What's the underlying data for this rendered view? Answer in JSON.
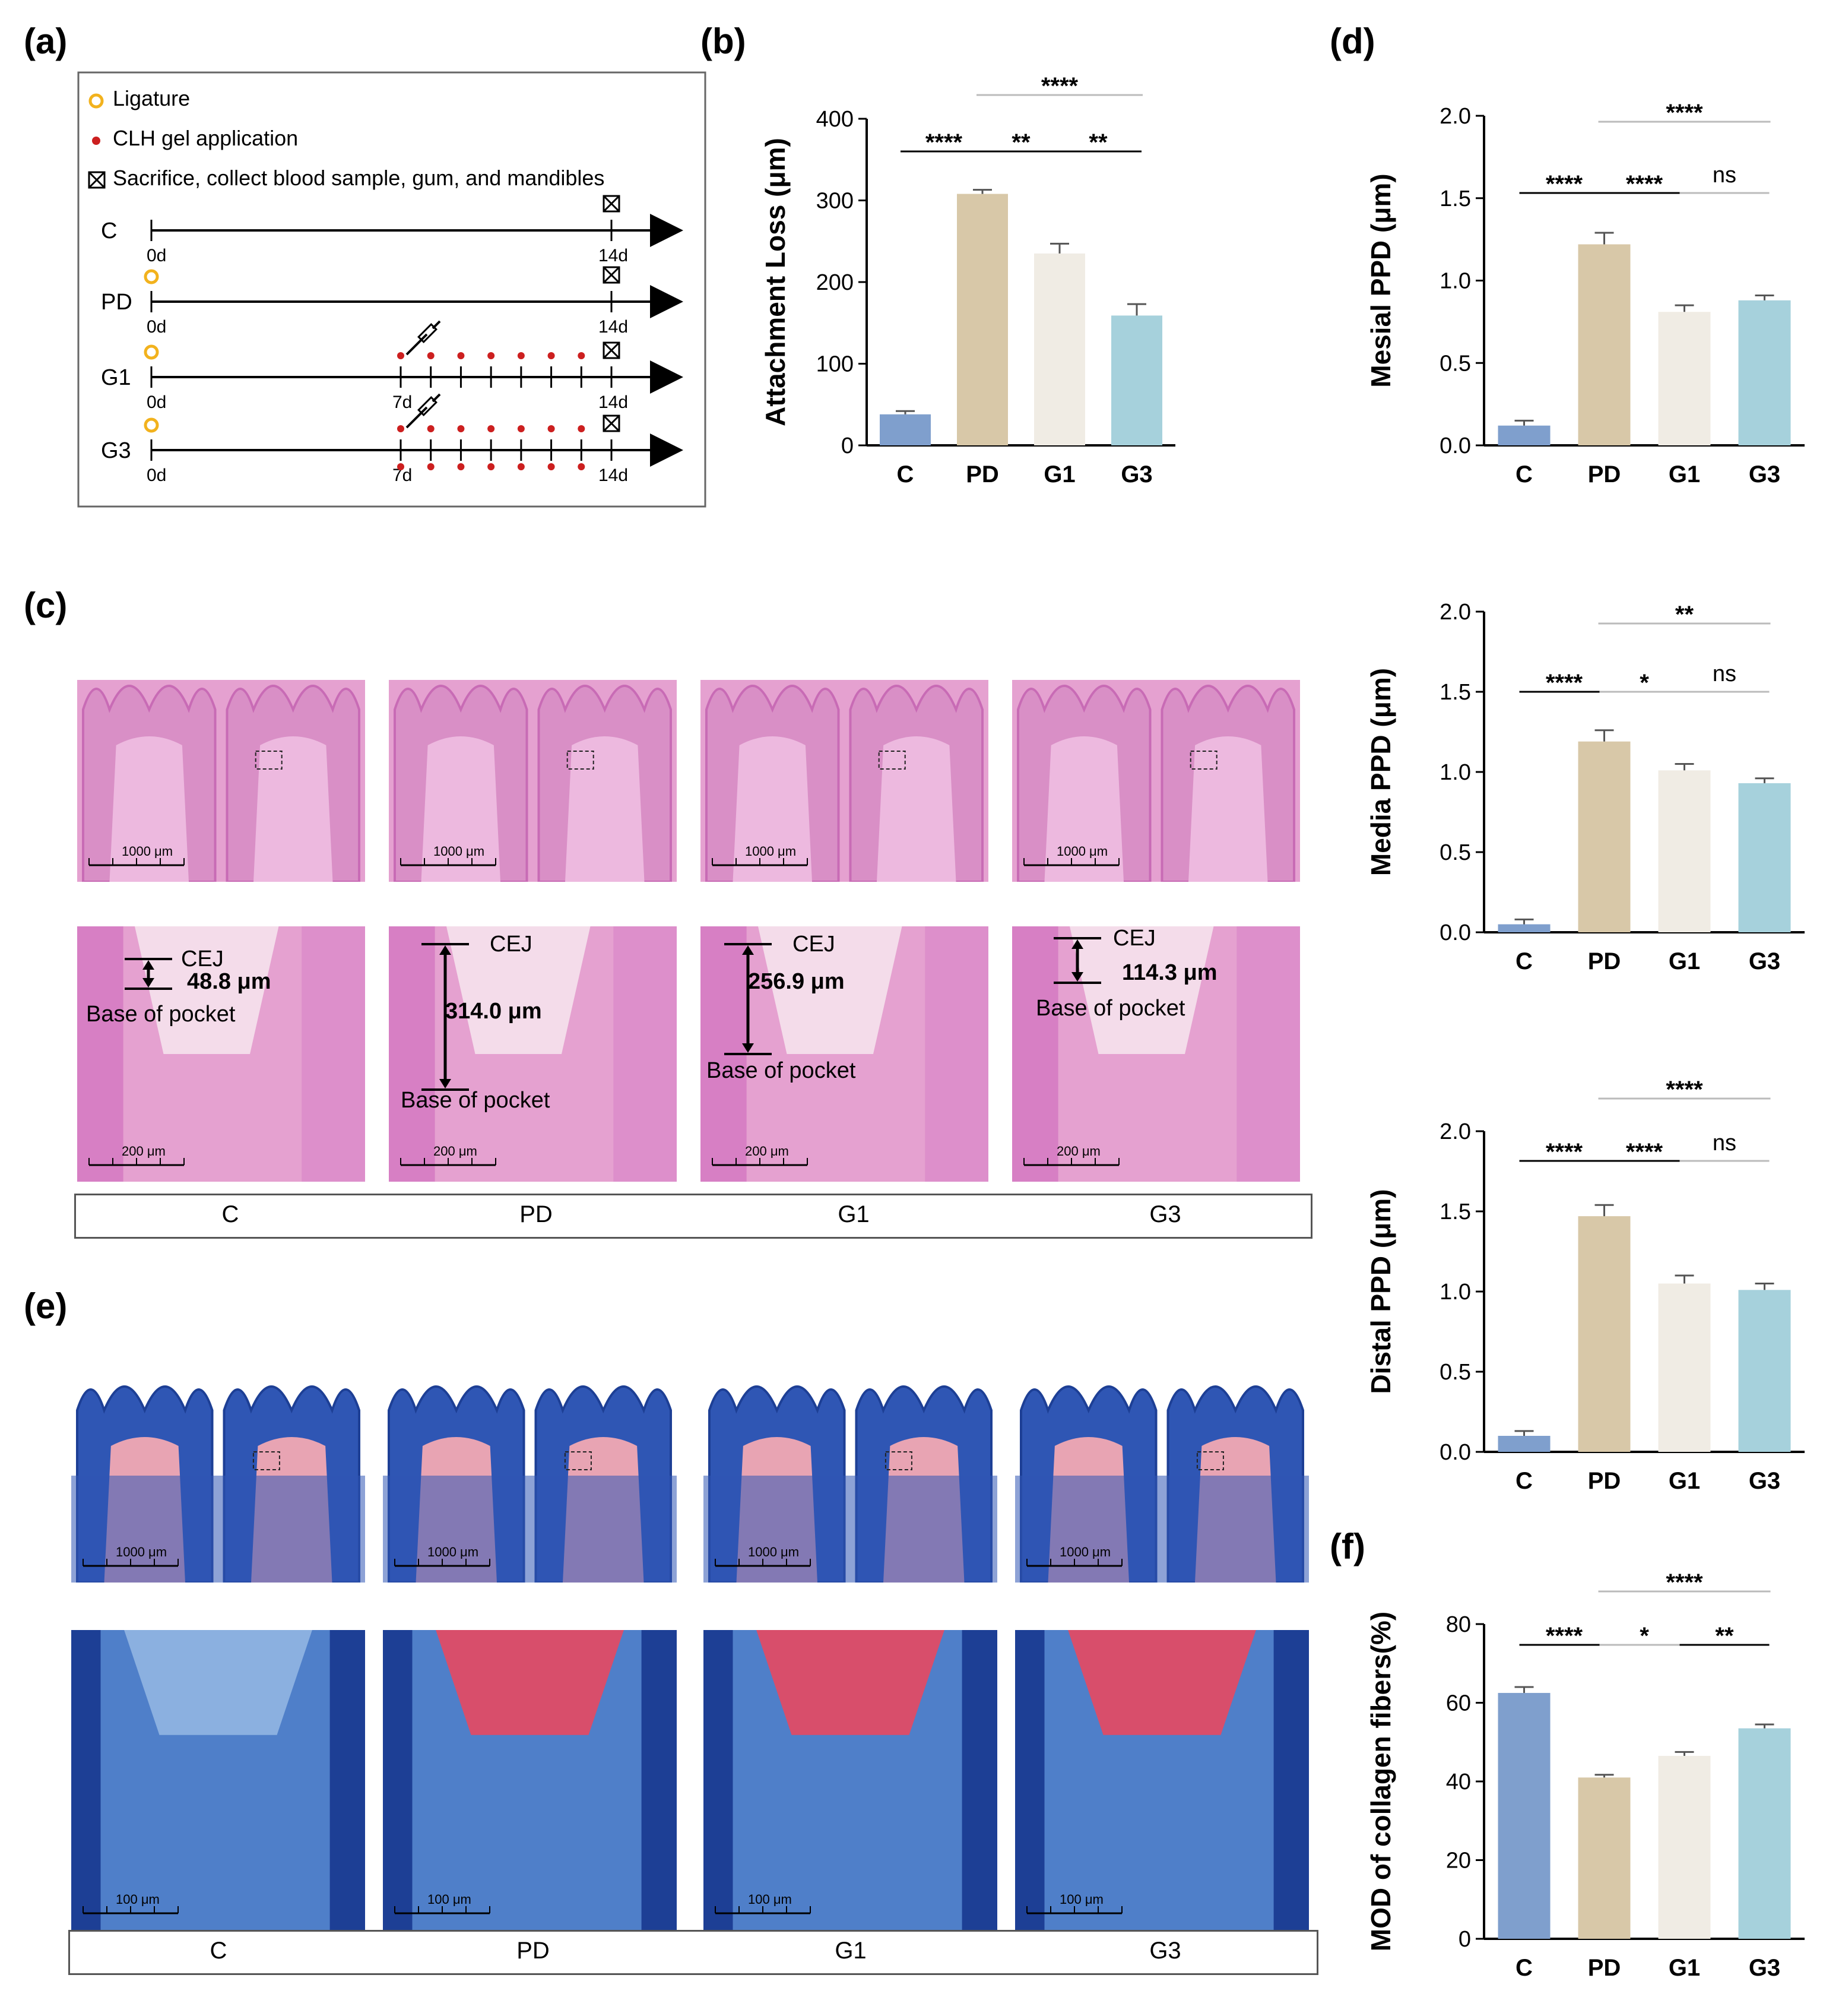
{
  "panels": {
    "a": "(a)",
    "b": "(b)",
    "c": "(c)",
    "d": "(d)",
    "e": "(e)",
    "f": "(f)"
  },
  "legend": {
    "ligature": "Ligature",
    "gel": "CLH gel application",
    "sacrifice": "Sacrifice, collect blood sample, gum, and mandibles"
  },
  "timeline": {
    "groups": [
      "C",
      "PD",
      "G1",
      "G3"
    ],
    "day0": "0d",
    "day7": "7d",
    "day14": "14d"
  },
  "colors": {
    "C": "#7f9fcd",
    "PD": "#d8c8a8",
    "G1": "#f0ece4",
    "G3": "#a6d1dc",
    "ligature": "#f2b21d",
    "gel": "#cc1f1f",
    "he_bg": "#e5a1d0",
    "he_dark": "#c86bb5",
    "mt_blue": "#2f56b4",
    "mt_red": "#d84e6b"
  },
  "histology": {
    "he_columns": [
      "C",
      "PD",
      "G1",
      "G3"
    ],
    "mt_columns": [
      "C",
      "PD",
      "G1",
      "G3"
    ],
    "scale_low": "1000 μm",
    "scale_high_he": "200 μm",
    "scale_high_mt": "100 μm",
    "cej": "CEJ",
    "base": "Base of pocket",
    "measurements": [
      "48.8 μm",
      "314.0 μm",
      "256.9 μm",
      "114.3 μm"
    ]
  },
  "chart_data": [
    {
      "id": "b",
      "type": "bar",
      "categories": [
        "C",
        "PD",
        "G1",
        "G3"
      ],
      "values": [
        38,
        308,
        235,
        159
      ],
      "errors": [
        4,
        5,
        12,
        14
      ],
      "ylabel": "Attachment Loss (μm)",
      "ylim": [
        0,
        400
      ],
      "yticks": [
        "0",
        "100",
        "200",
        "300",
        "400"
      ],
      "sig": [
        {
          "from": 0,
          "to": 1,
          "label": "****",
          "level": 0
        },
        {
          "from": 1,
          "to": 2,
          "label": "**",
          "level": 0
        },
        {
          "from": 2,
          "to": 3,
          "label": "**",
          "level": 0
        },
        {
          "from": 1,
          "to": 3,
          "label": "****",
          "level": 1
        }
      ]
    },
    {
      "id": "d1",
      "type": "bar",
      "categories": [
        "C",
        "PD",
        "G1",
        "G3"
      ],
      "values": [
        0.12,
        1.22,
        0.81,
        0.88
      ],
      "errors": [
        0.03,
        0.07,
        0.04,
        0.03
      ],
      "ylabel": "Mesial PPD (μm)",
      "ylim": [
        0,
        2.0
      ],
      "yticks": [
        "0.0",
        "0.5",
        "1.0",
        "1.5",
        "2.0"
      ],
      "sig": [
        {
          "from": 0,
          "to": 1,
          "label": "****",
          "level": 0
        },
        {
          "from": 1,
          "to": 2,
          "label": "****",
          "level": 0
        },
        {
          "from": 2,
          "to": 3,
          "label": "ns",
          "level": 0
        },
        {
          "from": 1,
          "to": 3,
          "label": "****",
          "level": 1
        }
      ]
    },
    {
      "id": "d2",
      "type": "bar",
      "categories": [
        "C",
        "PD",
        "G1",
        "G3"
      ],
      "values": [
        0.05,
        1.19,
        1.01,
        0.93
      ],
      "errors": [
        0.03,
        0.07,
        0.04,
        0.03
      ],
      "ylabel": "Media PPD (μm)",
      "ylim": [
        0,
        2.0
      ],
      "yticks": [
        "0.0",
        "0.5",
        "1.0",
        "1.5",
        "2.0"
      ],
      "sig": [
        {
          "from": 0,
          "to": 1,
          "label": "****",
          "level": 0
        },
        {
          "from": 1,
          "to": 2,
          "label": "*",
          "level": 0
        },
        {
          "from": 2,
          "to": 3,
          "label": "ns",
          "level": 0
        },
        {
          "from": 1,
          "to": 3,
          "label": "**",
          "level": 1
        }
      ]
    },
    {
      "id": "d3",
      "type": "bar",
      "categories": [
        "C",
        "PD",
        "G1",
        "G3"
      ],
      "values": [
        0.1,
        1.47,
        1.05,
        1.01
      ],
      "errors": [
        0.03,
        0.07,
        0.05,
        0.04
      ],
      "ylabel": "Distal PPD (μm)",
      "ylim": [
        0,
        2.0
      ],
      "yticks": [
        "0.0",
        "0.5",
        "1.0",
        "1.5",
        "2.0"
      ],
      "sig": [
        {
          "from": 0,
          "to": 1,
          "label": "****",
          "level": 0
        },
        {
          "from": 1,
          "to": 2,
          "label": "****",
          "level": 0
        },
        {
          "from": 2,
          "to": 3,
          "label": "ns",
          "level": 0
        },
        {
          "from": 1,
          "to": 3,
          "label": "****",
          "level": 1
        }
      ]
    },
    {
      "id": "f",
      "type": "bar",
      "categories": [
        "C",
        "PD",
        "G1",
        "G3"
      ],
      "values": [
        62.5,
        41,
        46.5,
        53.5
      ],
      "errors": [
        1.5,
        0.7,
        1.0,
        1.0
      ],
      "ylabel": "MOD of collagen fibers(%)",
      "ylim": [
        0,
        80
      ],
      "yticks": [
        "0",
        "20",
        "40",
        "60",
        "80"
      ],
      "sig": [
        {
          "from": 0,
          "to": 1,
          "label": "****",
          "level": 0
        },
        {
          "from": 1,
          "to": 2,
          "label": "*",
          "level": 0
        },
        {
          "from": 2,
          "to": 3,
          "label": "**",
          "level": 0
        },
        {
          "from": 1,
          "to": 3,
          "label": "****",
          "level": 1
        }
      ]
    }
  ]
}
